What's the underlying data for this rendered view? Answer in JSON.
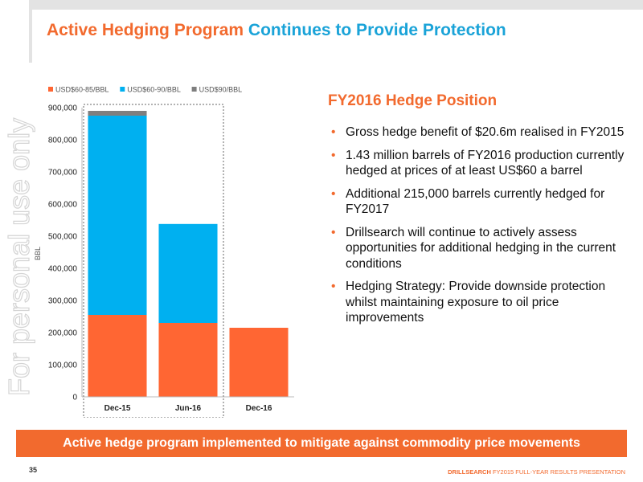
{
  "header": {
    "title_part1": "Active Hedging Program",
    "title_part2": "Continues to Provide Protection"
  },
  "watermark": {
    "text": "For personal use only",
    "color": "#d9d9d9"
  },
  "chart_data": {
    "type": "bar",
    "stacked": true,
    "categories": [
      "Dec-15",
      "Jun-16",
      "Dec-16"
    ],
    "series": [
      {
        "name": "USD$60-85/BBL",
        "color": "#ff6633",
        "values": [
          255000,
          230000,
          215000
        ]
      },
      {
        "name": "USD$60-90/BBL",
        "color": "#00b0f0",
        "values": [
          620000,
          308000,
          0
        ]
      },
      {
        "name": "USD$90/BBL",
        "color": "#7f7f7f",
        "values": [
          15000,
          0,
          0
        ]
      }
    ],
    "ylabel": "BBL",
    "ylim": [
      0,
      900000
    ],
    "yticks": [
      "0",
      "100,000",
      "200,000",
      "300,000",
      "400,000",
      "500,000",
      "600,000",
      "700,000",
      "800,000",
      "900,000"
    ],
    "legend_position": "top",
    "grid": false,
    "highlight": "dotted outline around Dec-15 and Jun-16"
  },
  "right": {
    "title": "FY2016 Hedge Position",
    "bullets": [
      "Gross hedge benefit of $20.6m realised in FY2015",
      "1.43 million barrels of FY2016 production currently hedged at prices of at least US$60 a barrel",
      "Additional 215,000 barrels currently hedged for FY2017",
      "Drillsearch will continue to actively assess opportunities for additional hedging in the current conditions",
      "Hedging Strategy: Provide downside protection whilst maintaining exposure to oil price improvements"
    ]
  },
  "banner": {
    "text": "Active hedge program implemented to mitigate against commodity price movements"
  },
  "footer": {
    "page_number": "35",
    "company": "DRILLSEARCH",
    "presentation": "FY2015 FULL-YEAR RESULTS PRESENTATION"
  }
}
